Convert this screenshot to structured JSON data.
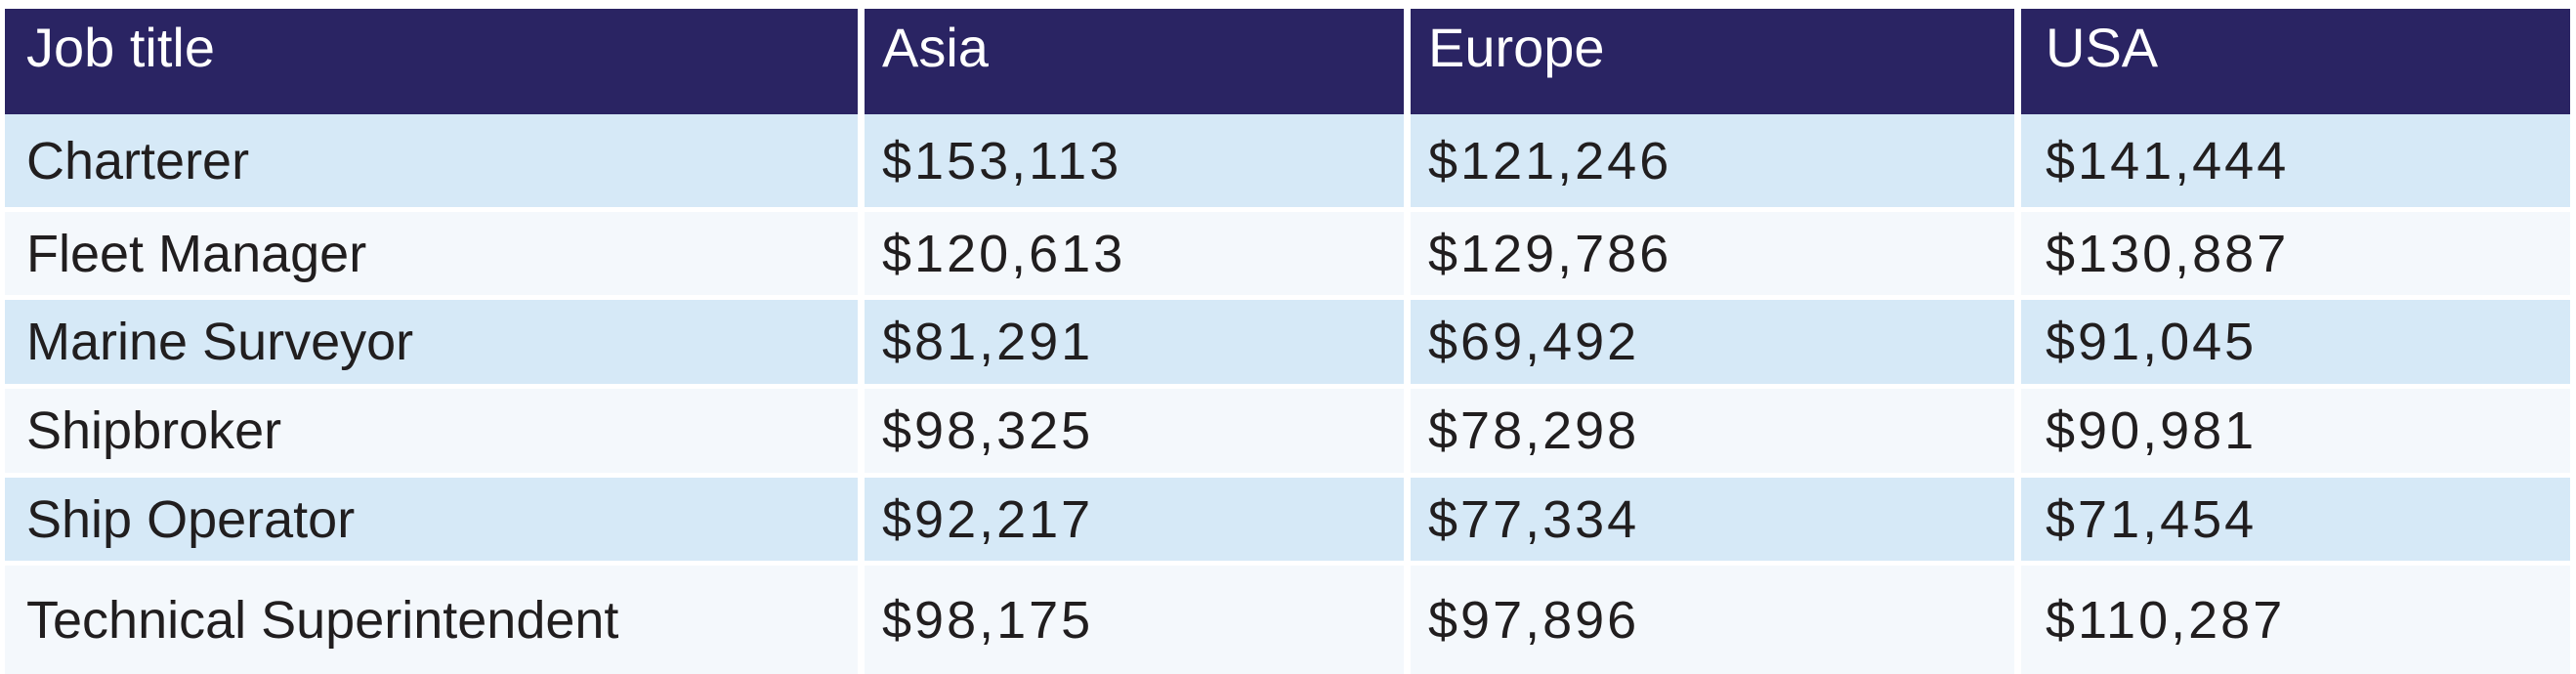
{
  "chart_data": {
    "type": "table",
    "columns": [
      "Job title",
      "Asia",
      "Europe",
      "USA"
    ],
    "rows": [
      {
        "job_title": "Charterer",
        "asia": "$153,113",
        "europe": "$121,246",
        "usa": "$141,444"
      },
      {
        "job_title": "Fleet Manager",
        "asia": "$120,613",
        "europe": "$129,786",
        "usa": "$130,887"
      },
      {
        "job_title": "Marine Surveyor",
        "asia": "$81,291",
        "europe": "$69,492",
        "usa": "$91,045"
      },
      {
        "job_title": "Shipbroker",
        "asia": "$98,325",
        "europe": "$78,298",
        "usa": "$90,981"
      },
      {
        "job_title": "Ship Operator",
        "asia": "$92,217",
        "europe": "$77,334",
        "usa": "$71,454"
      },
      {
        "job_title": "Technical Superintendent",
        "asia": "$98,175",
        "europe": "$97,896",
        "usa": "$110,287"
      }
    ],
    "layout_hints": {
      "header_row": true,
      "alternating_row_shading": true,
      "currency": "USD"
    }
  },
  "colors": {
    "header_bg": "#2a2463",
    "header_text": "#ffffff",
    "row_odd_bg": "#d6e9f7",
    "row_even_bg": "#f4f8fc",
    "body_text": "#211e1f",
    "gutter": "#ffffff"
  }
}
